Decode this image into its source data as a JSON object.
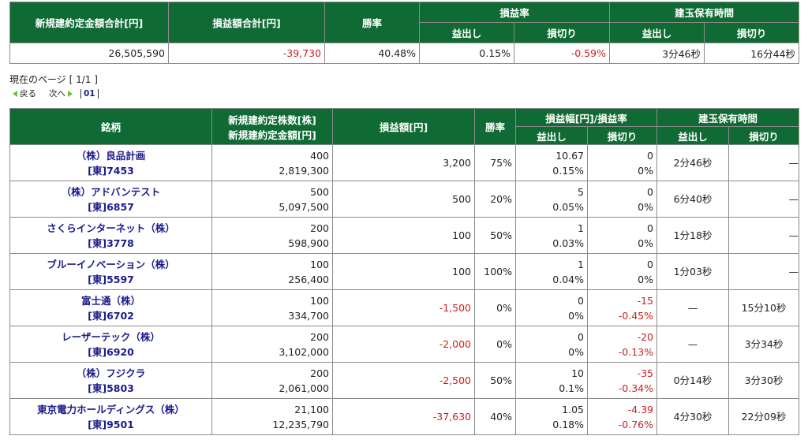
{
  "summary": {
    "headers": {
      "total_amount": "新規建約定金額合計[円]",
      "total_pl": "損益額合計[円]",
      "win_rate": "勝率",
      "pl_rate": "損益率",
      "hold_time": "建玉保有時間",
      "profit": "益出し",
      "loss": "損切り"
    },
    "values": {
      "total_amount": "26,505,590",
      "total_pl": "-39,730",
      "win_rate": "40.48%",
      "pl_rate_profit": "0.15%",
      "pl_rate_loss": "-0.59%",
      "hold_profit": "3分46秒",
      "hold_loss": "16分44秒"
    }
  },
  "pager": {
    "current_page": "現在のページ [ 1/1 ]",
    "back": "戻る",
    "next": "次へ",
    "page": "01"
  },
  "detail": {
    "headers": {
      "stock": "銘柄",
      "qty_amount_1": "新規建約定株数[株]",
      "qty_amount_2": "新規建約定金額[円]",
      "pl": "損益額[円]",
      "win_rate": "勝率",
      "pl_width_rate": "損益幅[円]/損益率",
      "hold_time": "建玉保有時間",
      "profit": "益出し",
      "loss": "損切り"
    },
    "rows": [
      {
        "name": "（株）良品計画",
        "code": "[東]7453",
        "qty": "400",
        "amount": "2,819,300",
        "pl": "3,200",
        "win": "75%",
        "pw": "10.67",
        "pr": "0.15%",
        "lw": "0",
        "lr": "0%",
        "hp": "2分46秒",
        "hl": "—"
      },
      {
        "name": "（株）アドバンテスト",
        "code": "[東]6857",
        "qty": "500",
        "amount": "5,097,500",
        "pl": "500",
        "win": "20%",
        "pw": "5",
        "pr": "0.05%",
        "lw": "0",
        "lr": "0%",
        "hp": "6分40秒",
        "hl": "—"
      },
      {
        "name": "さくらインターネット（株）",
        "code": "[東]3778",
        "qty": "200",
        "amount": "598,900",
        "pl": "100",
        "win": "50%",
        "pw": "1",
        "pr": "0.03%",
        "lw": "0",
        "lr": "0%",
        "hp": "1分18秒",
        "hl": "—"
      },
      {
        "name": "ブルーイノベーション（株）",
        "code": "[東]5597",
        "qty": "100",
        "amount": "256,400",
        "pl": "100",
        "win": "100%",
        "pw": "1",
        "pr": "0.04%",
        "lw": "0",
        "lr": "0%",
        "hp": "1分03秒",
        "hl": "—"
      },
      {
        "name": "富士通（株）",
        "code": "[東]6702",
        "qty": "100",
        "amount": "334,700",
        "pl": "-1,500",
        "win": "0%",
        "pw": "0",
        "pr": "0%",
        "lw": "-15",
        "lr": "-0.45%",
        "hp": "—",
        "hl": "15分10秒"
      },
      {
        "name": "レーザーテック（株）",
        "code": "[東]6920",
        "qty": "200",
        "amount": "3,102,000",
        "pl": "-2,000",
        "win": "0%",
        "pw": "0",
        "pr": "0%",
        "lw": "-20",
        "lr": "-0.13%",
        "hp": "—",
        "hl": "3分34秒"
      },
      {
        "name": "（株）フジクラ",
        "code": "[東]5803",
        "qty": "200",
        "amount": "2,061,000",
        "pl": "-2,500",
        "win": "50%",
        "pw": "10",
        "pr": "0.1%",
        "lw": "-35",
        "lr": "-0.34%",
        "hp": "0分14秒",
        "hl": "3分30秒"
      },
      {
        "name": "東京電力ホールディングス（株）",
        "code": "[東]9501",
        "qty": "21,100",
        "amount": "12,235,790",
        "pl": "-37,630",
        "win": "40%",
        "pw": "1.05",
        "pr": "0.18%",
        "lw": "-4.39",
        "lr": "-0.76%",
        "hp": "4分30秒",
        "hl": "22分09秒"
      }
    ]
  },
  "colors": {
    "header_bg": "#0f6b33",
    "negative": "#cc2020",
    "link": "#1a1a8c",
    "nav_triangle": "#6bbf3a"
  }
}
